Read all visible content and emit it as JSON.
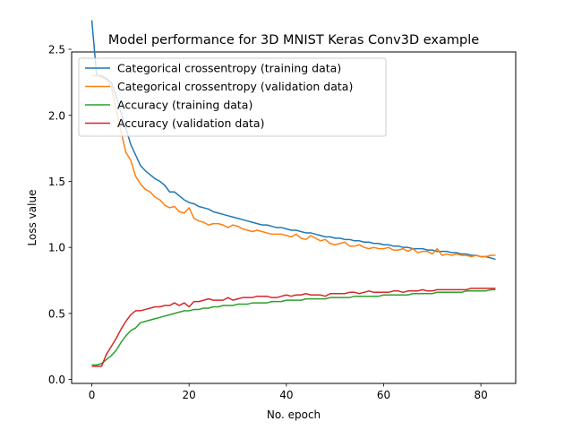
{
  "chart_data": {
    "type": "line",
    "title": "Model performance for 3D MNIST Keras Conv3D example",
    "xlabel": "No. epoch",
    "ylabel": "Loss value",
    "xlim": [
      -4.15,
      87.15
    ],
    "ylim": [
      -0.03,
      2.48
    ],
    "xticks": [
      0,
      20,
      40,
      60,
      80
    ],
    "yticks": [
      0.0,
      0.5,
      1.0,
      1.5,
      2.0,
      2.5
    ],
    "xtick_labels": [
      "0",
      "20",
      "40",
      "60",
      "80"
    ],
    "ytick_labels": [
      "0.0",
      "0.5",
      "1.0",
      "1.5",
      "2.0",
      "2.5"
    ],
    "legend_position": "upper-left",
    "grid": false,
    "series": [
      {
        "name": "Categorical crossentropy (training data)",
        "color": "#1f77b4",
        "values": [
          2.72,
          2.3,
          2.3,
          2.28,
          2.25,
          2.15,
          2.02,
          1.9,
          1.78,
          1.7,
          1.62,
          1.58,
          1.55,
          1.52,
          1.5,
          1.47,
          1.42,
          1.42,
          1.39,
          1.36,
          1.34,
          1.33,
          1.31,
          1.3,
          1.29,
          1.27,
          1.26,
          1.25,
          1.24,
          1.23,
          1.22,
          1.21,
          1.2,
          1.19,
          1.18,
          1.17,
          1.17,
          1.16,
          1.15,
          1.15,
          1.14,
          1.13,
          1.13,
          1.12,
          1.11,
          1.11,
          1.1,
          1.09,
          1.08,
          1.08,
          1.07,
          1.07,
          1.06,
          1.06,
          1.05,
          1.05,
          1.04,
          1.04,
          1.03,
          1.03,
          1.02,
          1.02,
          1.01,
          1.01,
          1.0,
          1.0,
          0.99,
          0.99,
          0.99,
          0.98,
          0.98,
          0.97,
          0.97,
          0.97,
          0.96,
          0.96,
          0.95,
          0.95,
          0.94,
          0.94,
          0.93,
          0.93,
          0.92,
          0.91
        ]
      },
      {
        "name": "Categorical crossentropy (validation data)",
        "color": "#ff7f0e",
        "values": [
          2.3,
          2.3,
          2.29,
          2.27,
          2.22,
          2.05,
          1.88,
          1.72,
          1.66,
          1.54,
          1.48,
          1.44,
          1.42,
          1.38,
          1.36,
          1.32,
          1.3,
          1.31,
          1.27,
          1.26,
          1.3,
          1.22,
          1.2,
          1.19,
          1.17,
          1.18,
          1.18,
          1.17,
          1.15,
          1.17,
          1.16,
          1.14,
          1.13,
          1.12,
          1.13,
          1.12,
          1.11,
          1.1,
          1.1,
          1.1,
          1.09,
          1.08,
          1.1,
          1.07,
          1.06,
          1.09,
          1.07,
          1.05,
          1.06,
          1.03,
          1.02,
          1.03,
          1.04,
          1.01,
          1.01,
          1.02,
          1.0,
          0.99,
          1.0,
          0.99,
          0.99,
          1.0,
          0.98,
          0.98,
          0.99,
          0.97,
          0.99,
          0.96,
          0.97,
          0.97,
          0.95,
          0.99,
          0.94,
          0.95,
          0.94,
          0.95,
          0.94,
          0.94,
          0.93,
          0.94,
          0.93,
          0.93,
          0.94,
          0.94
        ]
      },
      {
        "name": "Accuracy (training data)",
        "color": "#2ca02c",
        "values": [
          0.11,
          0.11,
          0.12,
          0.15,
          0.18,
          0.22,
          0.28,
          0.33,
          0.37,
          0.39,
          0.43,
          0.44,
          0.45,
          0.46,
          0.47,
          0.48,
          0.49,
          0.5,
          0.51,
          0.52,
          0.52,
          0.53,
          0.53,
          0.54,
          0.54,
          0.55,
          0.55,
          0.56,
          0.56,
          0.56,
          0.57,
          0.57,
          0.57,
          0.58,
          0.58,
          0.58,
          0.58,
          0.59,
          0.59,
          0.59,
          0.6,
          0.6,
          0.6,
          0.6,
          0.61,
          0.61,
          0.61,
          0.61,
          0.61,
          0.62,
          0.62,
          0.62,
          0.62,
          0.62,
          0.63,
          0.63,
          0.63,
          0.63,
          0.63,
          0.63,
          0.64,
          0.64,
          0.64,
          0.64,
          0.64,
          0.64,
          0.65,
          0.65,
          0.65,
          0.65,
          0.65,
          0.66,
          0.66,
          0.66,
          0.66,
          0.66,
          0.66,
          0.67,
          0.67,
          0.67,
          0.67,
          0.67,
          0.68,
          0.68
        ]
      },
      {
        "name": "Accuracy (validation data)",
        "color": "#d62728",
        "values": [
          0.1,
          0.1,
          0.1,
          0.19,
          0.25,
          0.31,
          0.38,
          0.44,
          0.49,
          0.52,
          0.52,
          0.53,
          0.54,
          0.55,
          0.55,
          0.56,
          0.56,
          0.58,
          0.56,
          0.58,
          0.55,
          0.59,
          0.59,
          0.6,
          0.61,
          0.6,
          0.6,
          0.6,
          0.62,
          0.6,
          0.61,
          0.62,
          0.62,
          0.62,
          0.63,
          0.63,
          0.63,
          0.62,
          0.62,
          0.63,
          0.64,
          0.63,
          0.64,
          0.64,
          0.65,
          0.64,
          0.64,
          0.64,
          0.63,
          0.65,
          0.65,
          0.65,
          0.65,
          0.66,
          0.66,
          0.65,
          0.66,
          0.67,
          0.66,
          0.66,
          0.66,
          0.66,
          0.67,
          0.67,
          0.66,
          0.67,
          0.67,
          0.67,
          0.68,
          0.67,
          0.67,
          0.68,
          0.68,
          0.68,
          0.68,
          0.68,
          0.68,
          0.68,
          0.69,
          0.69,
          0.69,
          0.69,
          0.69,
          0.69
        ]
      }
    ]
  }
}
